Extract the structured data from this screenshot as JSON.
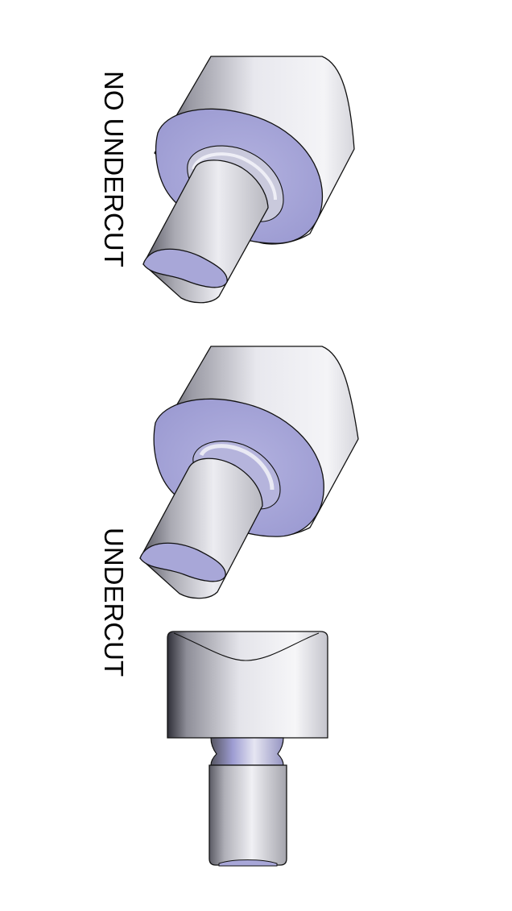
{
  "labels": {
    "no_undercut": "NO UNDERCUT",
    "undercut": "UNDERCUT"
  },
  "colors": {
    "face": "#a7a6d8",
    "face_dark": "#8d8cc6",
    "metal_light": "#ececf0",
    "metal_mid": "#bdbdc6",
    "metal_dark": "#4a4a55",
    "outline": "#111111"
  }
}
